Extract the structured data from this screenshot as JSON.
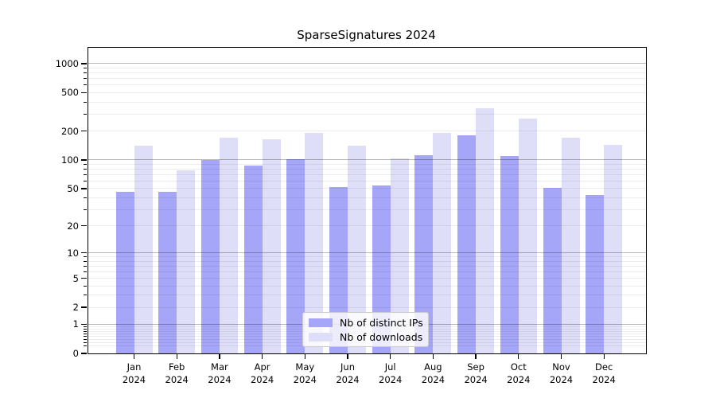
{
  "title": "SparseSignatures 2024",
  "chart_data": {
    "type": "bar",
    "title": "SparseSignatures 2024",
    "categories": [
      "Jan 2024",
      "Feb 2024",
      "Mar 2024",
      "Apr 2024",
      "May 2024",
      "Jun 2024",
      "Jul 2024",
      "Aug 2024",
      "Sep 2024",
      "Oct 2024",
      "Nov 2024",
      "Dec 2024"
    ],
    "x_tick_months": [
      "Jan",
      "Feb",
      "Mar",
      "Apr",
      "May",
      "Jun",
      "Jul",
      "Aug",
      "Sep",
      "Oct",
      "Nov",
      "Dec"
    ],
    "x_tick_year": "2024",
    "series": [
      {
        "name": "Nb of distinct IPs",
        "color": "#a6a6f8",
        "values": [
          46,
          46,
          100,
          88,
          102,
          52,
          54,
          112,
          180,
          110,
          51,
          43
        ]
      },
      {
        "name": "Nb of downloads",
        "color": "#dedef9",
        "values": [
          140,
          78,
          170,
          165,
          191,
          141,
          104,
          192,
          347,
          269,
          169,
          143
        ]
      }
    ],
    "ylabel": "",
    "xlabel": "",
    "yscale": "log(value+1), linear at 0",
    "yticks_labeled": [
      0,
      1,
      2,
      5,
      10,
      20,
      50,
      100,
      200,
      500,
      1000
    ],
    "major_decade_gridlines": [
      1,
      10,
      100,
      1000
    ],
    "ylim": [
      0,
      1460
    ],
    "grid": "on",
    "legend": {
      "position": "lower center",
      "entries": [
        "Nb of distinct IPs",
        "Nb of downloads"
      ]
    }
  },
  "colors": {
    "distinct_ips_bar": "#a6a6f8",
    "downloads_bar": "#dedef9",
    "major_grid": "#b8b8b8",
    "minor_grid": "#ececec",
    "spine": "#000000"
  }
}
